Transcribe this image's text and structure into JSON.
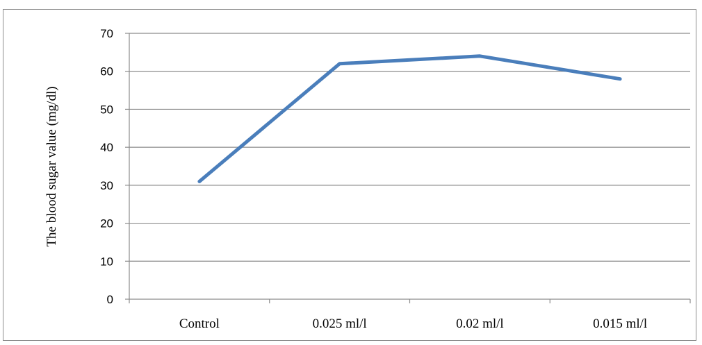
{
  "chart_data": {
    "type": "line",
    "title": "",
    "xlabel": "",
    "ylabel": "The blood sugar value (mg/dl)",
    "categories": [
      "Control",
      "0.025 ml/l",
      "0.02 ml/l",
      "0.015 ml/l"
    ],
    "series": [
      {
        "values": [
          31,
          62,
          64,
          58
        ],
        "color": "#4a7ebb"
      }
    ],
    "ylim": [
      0,
      70
    ],
    "yticks": [
      "0",
      "10",
      "20",
      "30",
      "40",
      "50",
      "60",
      "70"
    ],
    "grid": true,
    "legend": "none"
  }
}
